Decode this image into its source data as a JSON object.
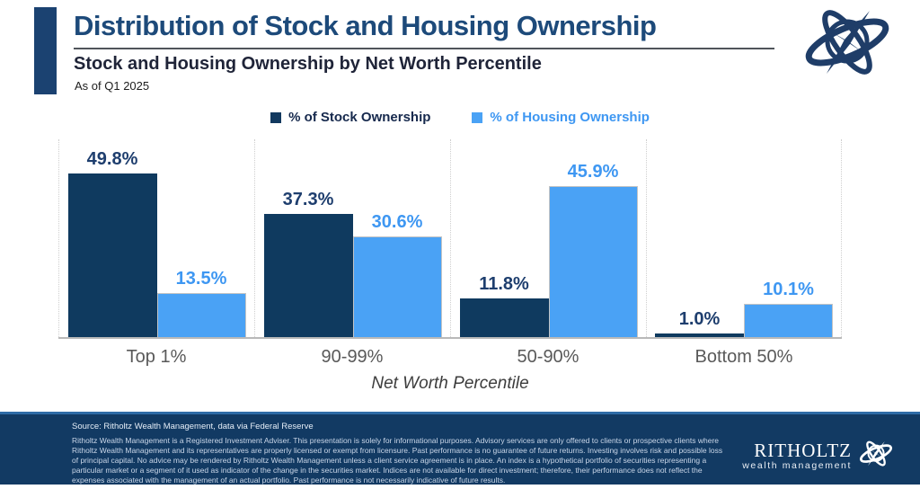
{
  "header": {
    "title": "Distribution of Stock and Housing Ownership",
    "subtitle": "Stock and Housing Ownership by Net Worth Percentile",
    "as_of": "As of Q1 2025"
  },
  "legend": {
    "stock": {
      "label": "% of Stock Ownership",
      "color": "#16294d",
      "swatch": "#12395f"
    },
    "housing": {
      "label": "% of Housing Ownership",
      "color": "#3e97f2",
      "swatch": "#4aa2f5"
    }
  },
  "chart_data": {
    "type": "bar",
    "title": "Stock and Housing Ownership by Net Worth Percentile",
    "categories": [
      "Top 1%",
      "90-99%",
      "50-90%",
      "Bottom 50%"
    ],
    "series": [
      {
        "name": "% of Stock Ownership",
        "key": "stock",
        "color": "#0f3a5f",
        "label_color": "#1e3e6e",
        "values": [
          49.8,
          37.3,
          11.8,
          1.0
        ]
      },
      {
        "name": "% of Housing Ownership",
        "key": "housing",
        "color": "#4aa2f5",
        "label_color": "#3e97f2",
        "values": [
          13.5,
          30.6,
          45.9,
          10.1
        ]
      }
    ],
    "value_suffix": "%",
    "xlabel": "Net Worth Percentile",
    "ylabel": "",
    "ylim": [
      0,
      60
    ],
    "grid": "vertical-group-separators",
    "legend_position": "top",
    "data_labels": true
  },
  "footer": {
    "source": "Source: Ritholtz Wealth Management, data via Federal Reserve",
    "disclaimer": "Ritholtz Wealth Management is a Registered Investment Adviser. This presentation is solely for informational purposes. Advisory services are only offered to clients or prospective clients where Ritholtz Wealth Management and its representatives are properly licensed or exempt from licensure. Past performance is no guarantee of future returns. Investing involves risk and possible loss of principal capital. No advice may be rendered by Ritholtz Wealth Management unless a client service agreement is in place. An index is a hypothetical portfolio of securities representing a particular market or a segment of it used as indicator of the change in the securities market. Indices are not available for direct investment; therefore, their performance does not reflect the expenses associated with the management of an actual portfolio. Past performance is not necessarily indicative of future results.",
    "brand_name": "RITHOLTZ",
    "brand_tagline": "wealth management"
  },
  "icons": {
    "top_logo": "armillary-sphere-logo",
    "footer_logo": "armillary-sphere-logo"
  },
  "colors": {
    "accent_navy": "#1b4271",
    "title_blue": "#1d4a7a",
    "stock_bar": "#0f3a5f",
    "housing_bar": "#4aa2f5",
    "footer_bg": "#123a63",
    "footer_border": "#2e6ba6",
    "axis_gray": "#b9b9b9",
    "category_gray": "#595959"
  }
}
